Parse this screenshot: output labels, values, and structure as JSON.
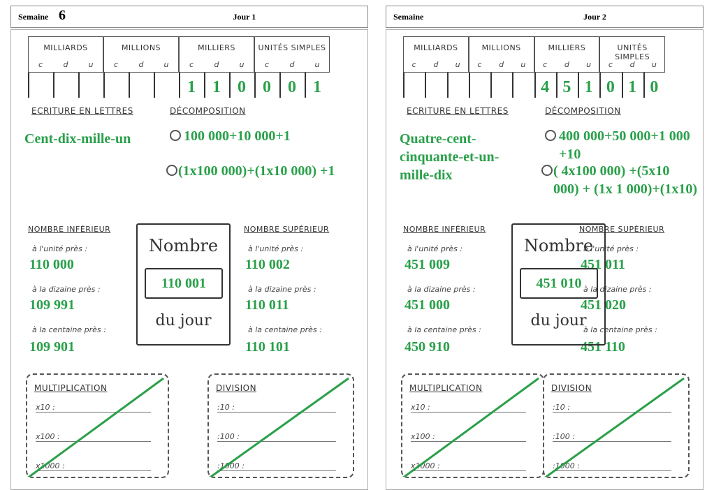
{
  "pages": [
    {
      "header": {
        "week": "Semaine",
        "week_number": "6",
        "day": "Jour 1"
      },
      "place_value": {
        "groups": [
          {
            "name": "MILLIARDS",
            "columns": [
              "c",
              "d",
              "u"
            ]
          },
          {
            "name": "MILLIONS",
            "columns": [
              "c",
              "d",
              "u"
            ]
          },
          {
            "name": "MILLIERS",
            "columns": [
              "c",
              "d",
              "u"
            ]
          },
          {
            "name": "UNITÉS SIMPLES",
            "columns": [
              "c",
              "d",
              "u"
            ]
          }
        ],
        "digits": [
          "1",
          "1",
          "0",
          "0",
          "0",
          "1"
        ]
      },
      "words": {
        "label": "ECRITURE EN LETTRES",
        "text": "Cent-dix-mille-un"
      },
      "decomposition": {
        "label": "DÉCOMPOSITION",
        "lines": [
          "100 000+10 000+1",
          "(1x100 000)+(1x10 000) +1"
        ]
      },
      "lower": {
        "label": "NOMBRE INFÉRIEUR",
        "rows": [
          {
            "label": "à l'unité près :",
            "value": "110 000"
          },
          {
            "label": "à la dizaine près :",
            "value": "109 991"
          },
          {
            "label": "à la centaine près :",
            "value": "109 901"
          }
        ]
      },
      "number": {
        "top": "Nombre",
        "value": "110 001",
        "bottom": "du jour"
      },
      "upper": {
        "label": "NOMBRE SUPÉRIEUR",
        "rows": [
          {
            "label": "à l'unité près :",
            "value": "110 002"
          },
          {
            "label": "à la dizaine près :",
            "value": "110 011"
          },
          {
            "label": "à la centaine près :",
            "value": "110 101"
          }
        ]
      },
      "multiplication": {
        "label": "MULTIPLICATION",
        "rows": [
          "x10 :",
          "x100 :",
          "x1000 :"
        ]
      },
      "division": {
        "label": "DIVISION",
        "rows": [
          ":10 :",
          ":100 :",
          ":1000 :"
        ]
      }
    },
    {
      "header": {
        "week": "Semaine",
        "day": "Jour 2"
      },
      "place_value": {
        "groups": [
          {
            "name": "MILLIARDS",
            "columns": [
              "c",
              "d",
              "u"
            ]
          },
          {
            "name": "MILLIONS",
            "columns": [
              "c",
              "d",
              "u"
            ]
          },
          {
            "name": "MILLIERS",
            "columns": [
              "c",
              "d",
              "u"
            ]
          },
          {
            "name": "UNITÉS SIMPLES",
            "columns": [
              "c",
              "d",
              "u"
            ]
          }
        ],
        "digits": [
          "4",
          "5",
          "1",
          "0",
          "1",
          "0"
        ]
      },
      "words": {
        "label": "ECRITURE EN LETTRES",
        "text": "Quatre-cent-cinquante-et-un-mille-dix"
      },
      "decomposition": {
        "label": "DÉCOMPOSITION",
        "lines": [
          "400 000+50 000+1 000 +10",
          "( 4x100 000) +(5x10 000) + (1x 1 000)+(1x10)"
        ]
      },
      "lower": {
        "label": "NOMBRE INFÉRIEUR",
        "rows": [
          {
            "label": "à l'unité près :",
            "value": "451 009"
          },
          {
            "label": "à la dizaine près :",
            "value": "451 000"
          },
          {
            "label": "à la centaine près :",
            "value": "450 910"
          }
        ]
      },
      "number": {
        "top": "Nombre",
        "value": "451 010",
        "bottom": "du jour"
      },
      "upper": {
        "label": "NOMBRE SUPÉRIEUR",
        "rows": [
          {
            "label": "à l'unité près :",
            "value": "451 011"
          },
          {
            "label": "à la dizaine près :",
            "value": "451 020"
          },
          {
            "label": "à la centaine près :",
            "value": "451 110"
          }
        ]
      },
      "multiplication": {
        "label": "MULTIPLICATION",
        "rows": [
          "x10 :",
          "x100 :",
          "x1000 :"
        ]
      },
      "division": {
        "label": "DIVISION",
        "rows": [
          ":10 :",
          ":100 :",
          ":1000 :"
        ]
      }
    }
  ]
}
